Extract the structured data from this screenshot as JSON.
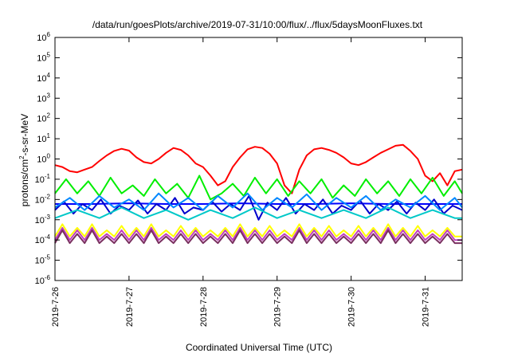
{
  "chart_data": {
    "type": "line",
    "title": "/data/run/goesPlots/archive/2019-07-31/10:00/flux/../flux/5daysMoonFluxes.txt",
    "xlabel": "Coordinated Universal Time (UTC)",
    "ylabel": "protons/cm2-s-sr-MeV",
    "ylabel_parts": {
      "pre": "protons/cm",
      "sup": "2",
      "post": "-s-sr-MeV"
    },
    "y_scale": "log",
    "ylim": [
      1e-06,
      1000000.0
    ],
    "xlim": [
      "2019-07-26 00:00",
      "2019-07-31 12:00"
    ],
    "x_ticks": [
      "2019-7-26",
      "2019-7-27",
      "2019-7-28",
      "2019-7-29",
      "2019-7-30",
      "2019-7-31"
    ],
    "y_ticks": [
      {
        "base": "10",
        "exp": "-6",
        "value": 1e-06
      },
      {
        "base": "10",
        "exp": "-5",
        "value": 1e-05
      },
      {
        "base": "10",
        "exp": "-4",
        "value": 0.0001
      },
      {
        "base": "10",
        "exp": "-3",
        "value": 0.001
      },
      {
        "base": "10",
        "exp": "-2",
        "value": 0.01
      },
      {
        "base": "10",
        "exp": "-1",
        "value": 0.1
      },
      {
        "base": "10",
        "exp": "0",
        "value": 1
      },
      {
        "base": "10",
        "exp": "1",
        "value": 10
      },
      {
        "base": "10",
        "exp": "2",
        "value": 100
      },
      {
        "base": "10",
        "exp": "3",
        "value": 1000
      },
      {
        "base": "10",
        "exp": "4",
        "value": 10000
      },
      {
        "base": "10",
        "exp": "5",
        "value": 100000
      },
      {
        "base": "10",
        "exp": "6",
        "value": 1000000
      }
    ],
    "grid": false,
    "legend": "none",
    "series": [
      {
        "color": "#ff0000",
        "x_days": [
          0,
          0.1,
          0.2,
          0.3,
          0.4,
          0.5,
          0.6,
          0.7,
          0.8,
          0.9,
          1.0,
          1.1,
          1.2,
          1.3,
          1.4,
          1.5,
          1.6,
          1.7,
          1.8,
          1.9,
          2.0,
          2.1,
          2.2,
          2.3,
          2.4,
          2.5,
          2.6,
          2.7,
          2.8,
          2.9,
          3.0,
          3.1,
          3.2,
          3.3,
          3.4,
          3.5,
          3.6,
          3.7,
          3.8,
          3.9,
          4.0,
          4.1,
          4.2,
          4.3,
          4.4,
          4.5,
          4.6,
          4.7,
          4.8,
          4.9,
          5.0,
          5.1,
          5.2,
          5.3,
          5.4,
          5.5
        ],
        "values": [
          0.5,
          0.4,
          0.25,
          0.22,
          0.3,
          0.4,
          0.8,
          1.5,
          2.5,
          3.2,
          2.6,
          1.2,
          0.7,
          0.6,
          1.0,
          2.0,
          3.5,
          2.8,
          1.5,
          0.6,
          0.4,
          0.15,
          0.05,
          0.08,
          0.4,
          1.2,
          3.0,
          4.0,
          3.5,
          1.8,
          0.6,
          0.05,
          0.02,
          0.3,
          1.5,
          3.0,
          3.5,
          2.8,
          2.0,
          1.2,
          0.6,
          0.5,
          0.7,
          1.2,
          2.0,
          3.0,
          4.5,
          5.0,
          2.5,
          1.0,
          0.15,
          0.08,
          0.2,
          0.05,
          0.25,
          0.3
        ]
      },
      {
        "color": "#00ee00",
        "x_days": [
          0,
          0.15,
          0.3,
          0.45,
          0.6,
          0.75,
          0.9,
          1.05,
          1.2,
          1.35,
          1.5,
          1.65,
          1.8,
          1.95,
          2.1,
          2.25,
          2.4,
          2.55,
          2.7,
          2.85,
          3.0,
          3.15,
          3.3,
          3.45,
          3.6,
          3.75,
          3.9,
          4.05,
          4.2,
          4.35,
          4.5,
          4.65,
          4.8,
          4.95,
          5.1,
          5.25,
          5.4,
          5.5
        ],
        "values": [
          0.02,
          0.1,
          0.02,
          0.08,
          0.015,
          0.12,
          0.02,
          0.05,
          0.015,
          0.1,
          0.02,
          0.06,
          0.012,
          0.15,
          0.01,
          0.02,
          0.06,
          0.015,
          0.12,
          0.02,
          0.1,
          0.015,
          0.08,
          0.02,
          0.1,
          0.012,
          0.05,
          0.015,
          0.1,
          0.02,
          0.08,
          0.015,
          0.1,
          0.02,
          0.12,
          0.015,
          0.08,
          0.02
        ]
      },
      {
        "color": "#0000ff",
        "x_days": [
          0,
          0.5,
          1.0,
          1.5,
          2.0,
          2.5,
          3.0,
          3.5,
          4.0,
          4.5,
          5.0,
          5.5
        ],
        "values": [
          0.006,
          0.006,
          0.0065,
          0.006,
          0.006,
          0.0065,
          0.006,
          0.006,
          0.0065,
          0.006,
          0.006,
          0.006
        ]
      },
      {
        "color": "#0000cc",
        "x_days": [
          0,
          0.12,
          0.25,
          0.37,
          0.5,
          0.62,
          0.75,
          0.87,
          1.0,
          1.12,
          1.25,
          1.37,
          1.5,
          1.62,
          1.75,
          1.87,
          2.0,
          2.12,
          2.25,
          2.37,
          2.5,
          2.62,
          2.75,
          2.87,
          3.0,
          3.12,
          3.25,
          3.37,
          3.5,
          3.62,
          3.75,
          3.87,
          4.0,
          4.12,
          4.25,
          4.37,
          4.5,
          4.62,
          4.75,
          4.87,
          5.0,
          5.12,
          5.25,
          5.37,
          5.5
        ],
        "values": [
          0.003,
          0.008,
          0.002,
          0.006,
          0.003,
          0.01,
          0.002,
          0.005,
          0.003,
          0.009,
          0.002,
          0.006,
          0.003,
          0.012,
          0.002,
          0.004,
          0.003,
          0.008,
          0.0025,
          0.006,
          0.003,
          0.015,
          0.001,
          0.007,
          0.003,
          0.012,
          0.002,
          0.006,
          0.003,
          0.01,
          0.002,
          0.005,
          0.003,
          0.009,
          0.002,
          0.006,
          0.003,
          0.008,
          0.002,
          0.007,
          0.003,
          0.01,
          0.002,
          0.005,
          0.003
        ]
      },
      {
        "color": "#0088ff",
        "x_days": [
          0,
          0.2,
          0.4,
          0.6,
          0.8,
          1.0,
          1.2,
          1.4,
          1.6,
          1.8,
          2.0,
          2.2,
          2.4,
          2.6,
          2.8,
          3.0,
          3.2,
          3.4,
          3.6,
          3.8,
          4.0,
          4.2,
          4.4,
          4.6,
          4.8,
          5.0,
          5.2,
          5.4,
          5.5
        ],
        "values": [
          0.004,
          0.012,
          0.003,
          0.015,
          0.004,
          0.01,
          0.003,
          0.02,
          0.004,
          0.012,
          0.003,
          0.015,
          0.004,
          0.02,
          0.003,
          0.012,
          0.004,
          0.018,
          0.003,
          0.012,
          0.004,
          0.015,
          0.003,
          0.01,
          0.004,
          0.015,
          0.003,
          0.012,
          0.004
        ]
      },
      {
        "color": "#00c8c8",
        "x_days": [
          0,
          0.3,
          0.6,
          0.9,
          1.2,
          1.5,
          1.8,
          2.1,
          2.4,
          2.7,
          3.0,
          3.3,
          3.6,
          3.9,
          4.2,
          4.5,
          4.8,
          5.1,
          5.4,
          5.5
        ],
        "values": [
          0.0012,
          0.003,
          0.0012,
          0.004,
          0.0012,
          0.003,
          0.001,
          0.003,
          0.0012,
          0.004,
          0.0012,
          0.003,
          0.0012,
          0.003,
          0.0012,
          0.004,
          0.0012,
          0.003,
          0.0012,
          0.0012
        ]
      },
      {
        "color": "#ffff00",
        "x_days": [
          0,
          0.1,
          0.2,
          0.3,
          0.4,
          0.5,
          0.6,
          0.7,
          0.8,
          0.9,
          1.0,
          1.1,
          1.2,
          1.3,
          1.4,
          1.5,
          1.6,
          1.7,
          1.8,
          1.9,
          2.0,
          2.1,
          2.2,
          2.3,
          2.4,
          2.5,
          2.6,
          2.7,
          2.8,
          2.9,
          3.0,
          3.1,
          3.2,
          3.3,
          3.4,
          3.5,
          3.6,
          3.7,
          3.8,
          3.9,
          4.0,
          4.1,
          4.2,
          4.3,
          4.4,
          4.5,
          4.6,
          4.7,
          4.8,
          4.9,
          5.0,
          5.1,
          5.2,
          5.3,
          5.4,
          5.5
        ],
        "values": [
          0.00015,
          0.0006,
          0.00015,
          0.0004,
          0.00015,
          0.0006,
          0.00015,
          0.0003,
          0.00015,
          0.0005,
          0.00015,
          0.0004,
          0.00015,
          0.0006,
          0.00015,
          0.0003,
          0.00015,
          0.0005,
          0.00015,
          0.0004,
          0.00015,
          0.0003,
          0.00015,
          0.0004,
          0.00015,
          0.0006,
          0.00015,
          0.0004,
          0.00015,
          0.0005,
          0.00015,
          0.0003,
          0.00015,
          0.0006,
          0.00015,
          0.0004,
          0.00015,
          0.0005,
          0.00015,
          0.0003,
          0.00015,
          0.0005,
          0.00015,
          0.0004,
          0.00015,
          0.0006,
          0.00015,
          0.0004,
          0.00015,
          0.0005,
          0.00015,
          0.0003,
          0.00015,
          0.0004,
          0.00015,
          0.00015
        ]
      },
      {
        "color": "#c040c0",
        "x_days": [
          0,
          0.1,
          0.2,
          0.3,
          0.4,
          0.5,
          0.6,
          0.7,
          0.8,
          0.9,
          1.0,
          1.1,
          1.2,
          1.3,
          1.4,
          1.5,
          1.6,
          1.7,
          1.8,
          1.9,
          2.0,
          2.1,
          2.2,
          2.3,
          2.4,
          2.5,
          2.6,
          2.7,
          2.8,
          2.9,
          3.0,
          3.1,
          3.2,
          3.3,
          3.4,
          3.5,
          3.6,
          3.7,
          3.8,
          3.9,
          4.0,
          4.1,
          4.2,
          4.3,
          4.4,
          4.5,
          4.6,
          4.7,
          4.8,
          4.9,
          5.0,
          5.1,
          5.2,
          5.3,
          5.4,
          5.5
        ],
        "values": [
          0.0001,
          0.0004,
          0.0001,
          0.0003,
          0.0001,
          0.0004,
          0.0001,
          0.0002,
          0.0001,
          0.0003,
          0.0001,
          0.0003,
          0.0001,
          0.0004,
          0.0001,
          0.0002,
          0.0001,
          0.0003,
          0.0001,
          0.0003,
          0.0001,
          0.0002,
          0.0001,
          0.0003,
          0.0001,
          0.0004,
          0.0001,
          0.0003,
          0.0001,
          0.0003,
          0.0001,
          0.0002,
          0.0001,
          0.0004,
          0.0001,
          0.0003,
          0.0001,
          0.0003,
          0.0001,
          0.0002,
          0.0001,
          0.0003,
          0.0001,
          0.0003,
          0.0001,
          0.0004,
          0.0001,
          0.0003,
          0.0001,
          0.0003,
          0.0001,
          0.0002,
          0.0001,
          0.0003,
          0.0001,
          0.0001
        ]
      },
      {
        "color": "#7a3060",
        "x_days": [
          0,
          0.1,
          0.2,
          0.3,
          0.4,
          0.5,
          0.6,
          0.7,
          0.8,
          0.9,
          1.0,
          1.1,
          1.2,
          1.3,
          1.4,
          1.5,
          1.6,
          1.7,
          1.8,
          1.9,
          2.0,
          2.1,
          2.2,
          2.3,
          2.4,
          2.5,
          2.6,
          2.7,
          2.8,
          2.9,
          3.0,
          3.1,
          3.2,
          3.3,
          3.4,
          3.5,
          3.6,
          3.7,
          3.8,
          3.9,
          4.0,
          4.1,
          4.2,
          4.3,
          4.4,
          4.5,
          4.6,
          4.7,
          4.8,
          4.9,
          5.0,
          5.1,
          5.2,
          5.3,
          5.4,
          5.5
        ],
        "values": [
          7e-05,
          0.0003,
          7e-05,
          0.0002,
          7e-05,
          0.0003,
          7e-05,
          0.00015,
          7e-05,
          0.0002,
          7e-05,
          0.0002,
          7e-05,
          0.0003,
          7e-05,
          0.00015,
          7e-05,
          0.0002,
          7e-05,
          0.0002,
          7e-05,
          0.00015,
          7e-05,
          0.0002,
          7e-05,
          0.0003,
          7e-05,
          0.0002,
          7e-05,
          0.0002,
          7e-05,
          0.00015,
          7e-05,
          0.0003,
          7e-05,
          0.0002,
          7e-05,
          0.0002,
          7e-05,
          0.00015,
          7e-05,
          0.0002,
          7e-05,
          0.0002,
          7e-05,
          0.0003,
          7e-05,
          0.0002,
          7e-05,
          0.0002,
          7e-05,
          0.00015,
          7e-05,
          0.0002,
          7e-05,
          7e-05
        ]
      }
    ]
  }
}
